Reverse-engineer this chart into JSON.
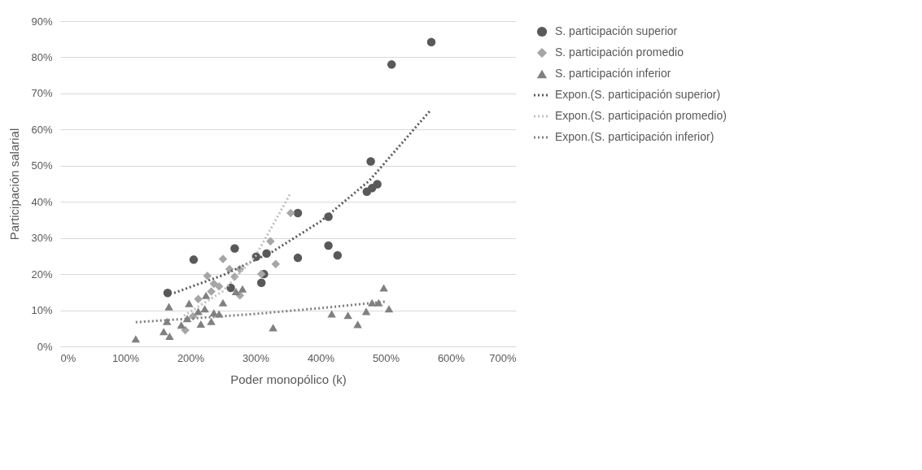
{
  "chart_data": {
    "type": "scatter",
    "xlabel": "Poder monopólico (k)",
    "ylabel": "Participación salarial",
    "xlim": [
      0,
      700
    ],
    "ylim": [
      0,
      90
    ],
    "xticks": [
      {
        "value": 0,
        "label": "0%"
      },
      {
        "value": 100,
        "label": "100%"
      },
      {
        "value": 200,
        "label": "200%"
      },
      {
        "value": 300,
        "label": "300%"
      },
      {
        "value": 400,
        "label": "400%"
      },
      {
        "value": 500,
        "label": "500%"
      },
      {
        "value": 600,
        "label": "600%"
      },
      {
        "value": 700,
        "label": "700%"
      }
    ],
    "yticks": [
      {
        "value": 0,
        "label": "0%"
      },
      {
        "value": 10,
        "label": "10%"
      },
      {
        "value": 20,
        "label": "20%"
      },
      {
        "value": 30,
        "label": "30%"
      },
      {
        "value": 40,
        "label": "40%"
      },
      {
        "value": 50,
        "label": "50%"
      },
      {
        "value": 60,
        "label": "60%"
      },
      {
        "value": 70,
        "label": "70%"
      },
      {
        "value": 80,
        "label": "80%"
      },
      {
        "value": 90,
        "label": "90%"
      }
    ],
    "grid": "y",
    "legend": "right",
    "series": [
      {
        "name": "S. participación superior",
        "marker": "circle",
        "color": "#595959",
        "x": [
          165,
          205,
          262,
          268,
          309,
          313,
          301,
          317,
          365,
          365,
          570,
          509,
          477,
          487,
          471,
          479,
          412,
          412,
          426
        ],
        "values": [
          14.8,
          24.0,
          16.2,
          27.1,
          17.6,
          20.0,
          24.8,
          25.7,
          36.9,
          24.5,
          84.2,
          78.0,
          51.2,
          44.9,
          42.8,
          43.8,
          35.9,
          27.9,
          25.2
        ]
      },
      {
        "name": "S. participación promedio",
        "marker": "diamond",
        "color": "#a6a6a6",
        "x": [
          250,
          226,
          236,
          260,
          276,
          323,
          331,
          354,
          309,
          276,
          212,
          204,
          192,
          244,
          232,
          268
        ],
        "values": [
          24.2,
          19.5,
          17.3,
          21.4,
          21.4,
          29.1,
          22.8,
          36.9,
          20.0,
          14.1,
          13.1,
          8.3,
          4.5,
          16.6,
          15.2,
          19.3
        ]
      },
      {
        "name": "S. participación inferior",
        "marker": "triangle",
        "color": "#808080",
        "x": [
          116,
          159,
          168,
          167,
          164,
          186,
          195,
          198,
          216,
          224,
          222,
          236,
          250,
          244,
          270,
          280,
          327,
          417,
          442,
          457,
          470,
          479,
          489,
          497,
          505,
          212,
          232
        ],
        "values": [
          2.1,
          4.1,
          2.8,
          11.0,
          6.9,
          5.9,
          7.7,
          11.9,
          6.2,
          14.1,
          10.4,
          9.3,
          12.1,
          9.0,
          15.2,
          15.9,
          5.2,
          9.0,
          8.6,
          6.1,
          9.7,
          12.1,
          12.1,
          16.2,
          10.4,
          9.7,
          6.9
        ]
      },
      {
        "name": "Expon.(S. participación superior)",
        "type": "line",
        "line_style": "dotted",
        "color": "#595959",
        "x": [
          175,
          250,
          325,
          400,
          475,
          568
        ],
        "values": [
          14.8,
          19.7,
          26.1,
          34.6,
          45.9,
          65.2
        ]
      },
      {
        "name": "Expon.(S. participación promedio)",
        "type": "line",
        "line_style": "dotted",
        "color": "#bfbfbf",
        "x": [
          190,
          250,
          300,
          353
        ],
        "values": [
          8.5,
          15.3,
          25.0,
          42.1
        ]
      },
      {
        "name": "Expon.(S. participación inferior)",
        "type": "line",
        "line_style": "dotted",
        "color": "#808080",
        "x": [
          116,
          200,
          300,
          400,
          501
        ],
        "values": [
          6.7,
          7.7,
          9.0,
          10.6,
          12.4
        ]
      }
    ]
  }
}
